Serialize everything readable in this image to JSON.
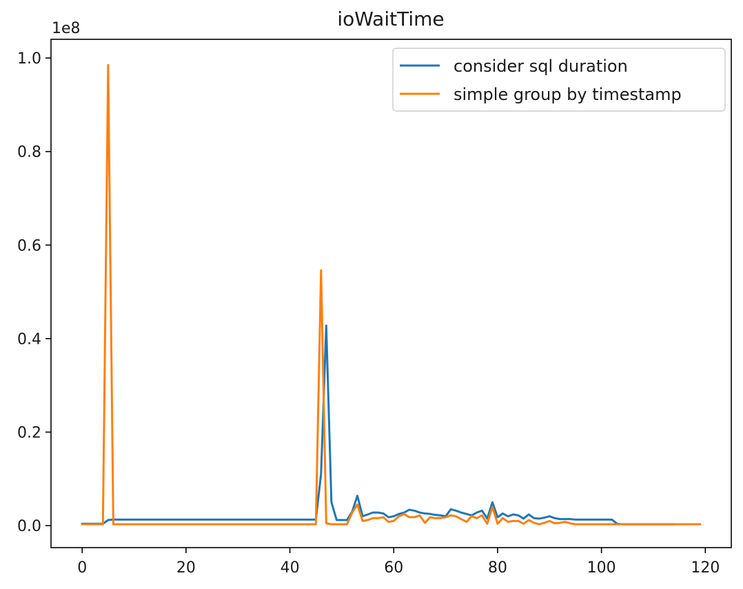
{
  "chart_data": {
    "type": "line",
    "title": "ioWaitTime",
    "y_offset_label": "1e8",
    "xlim": [
      -6,
      125
    ],
    "ylim": [
      -0.047,
      1.04
    ],
    "x_ticks": [
      0,
      20,
      40,
      60,
      80,
      100,
      120
    ],
    "y_ticks": [
      0.0,
      0.2,
      0.4,
      0.6,
      0.8,
      1.0
    ],
    "y_tick_labels": [
      "0.0",
      "0.2",
      "0.4",
      "0.6",
      "0.8",
      "1.0"
    ],
    "grid": false,
    "legend_placement": "top-right",
    "series": [
      {
        "name": "consider sql duration",
        "color": "#1f77b4",
        "x": [
          0,
          1,
          2,
          3,
          4,
          5,
          6,
          7,
          8,
          9,
          10,
          11,
          12,
          13,
          14,
          15,
          16,
          17,
          18,
          19,
          20,
          21,
          22,
          23,
          24,
          25,
          26,
          27,
          28,
          29,
          30,
          31,
          32,
          33,
          34,
          35,
          36,
          37,
          38,
          39,
          40,
          41,
          42,
          43,
          44,
          45,
          46,
          47,
          48,
          49,
          50,
          51,
          52,
          53,
          54,
          55,
          56,
          57,
          58,
          59,
          60,
          61,
          62,
          63,
          64,
          65,
          66,
          67,
          68,
          69,
          70,
          71,
          72,
          73,
          74,
          75,
          76,
          77,
          78,
          79,
          80,
          81,
          82,
          83,
          84,
          85,
          86,
          87,
          88,
          89,
          90,
          91,
          92,
          93,
          94,
          95,
          96,
          97,
          98,
          99,
          100,
          101,
          102,
          103,
          104,
          105,
          106,
          107,
          108,
          109,
          110,
          111,
          112,
          113,
          114
        ],
        "y": [
          0.004,
          0.004,
          0.004,
          0.004,
          0.004,
          0.012,
          0.013,
          0.013,
          0.013,
          0.013,
          0.013,
          0.013,
          0.013,
          0.013,
          0.013,
          0.013,
          0.013,
          0.013,
          0.013,
          0.013,
          0.013,
          0.013,
          0.013,
          0.013,
          0.013,
          0.013,
          0.013,
          0.013,
          0.013,
          0.013,
          0.013,
          0.013,
          0.013,
          0.013,
          0.013,
          0.013,
          0.013,
          0.013,
          0.013,
          0.013,
          0.013,
          0.013,
          0.013,
          0.013,
          0.013,
          0.013,
          0.11,
          0.428,
          0.05,
          0.012,
          0.012,
          0.012,
          0.03,
          0.064,
          0.02,
          0.024,
          0.028,
          0.028,
          0.026,
          0.018,
          0.02,
          0.025,
          0.028,
          0.034,
          0.032,
          0.028,
          0.026,
          0.025,
          0.023,
          0.022,
          0.02,
          0.035,
          0.032,
          0.028,
          0.025,
          0.022,
          0.028,
          0.032,
          0.015,
          0.05,
          0.018,
          0.026,
          0.02,
          0.024,
          0.022,
          0.015,
          0.024,
          0.016,
          0.015,
          0.017,
          0.02,
          0.016,
          0.014,
          0.014,
          0.014,
          0.013,
          0.013,
          0.013,
          0.013,
          0.013,
          0.013,
          0.013,
          0.013,
          0.004,
          0.003,
          0.003,
          0.003,
          0.003,
          0.003,
          0.003,
          0.003,
          0.003,
          0.003,
          0.003,
          0.003
        ]
      },
      {
        "name": "simple group by timestamp",
        "color": "#ff7f0e",
        "x": [
          0,
          1,
          2,
          3,
          4,
          5,
          6,
          7,
          8,
          9,
          10,
          11,
          12,
          13,
          14,
          15,
          16,
          17,
          18,
          19,
          20,
          21,
          22,
          23,
          24,
          25,
          26,
          27,
          28,
          29,
          30,
          31,
          32,
          33,
          34,
          35,
          36,
          37,
          38,
          39,
          40,
          41,
          42,
          43,
          44,
          45,
          46,
          47,
          48,
          49,
          50,
          51,
          52,
          53,
          54,
          55,
          56,
          57,
          58,
          59,
          60,
          61,
          62,
          63,
          64,
          65,
          66,
          67,
          68,
          69,
          70,
          71,
          72,
          73,
          74,
          75,
          76,
          77,
          78,
          79,
          80,
          81,
          82,
          83,
          84,
          85,
          86,
          87,
          88,
          89,
          90,
          91,
          92,
          93,
          94,
          95,
          96,
          97,
          98,
          99,
          100,
          101,
          102,
          103,
          104,
          105,
          106,
          107,
          108,
          109,
          110,
          111,
          112,
          113,
          114,
          115,
          116,
          117,
          118,
          119
        ],
        "y": [
          0.003,
          0.003,
          0.003,
          0.003,
          0.003,
          0.985,
          0.003,
          0.003,
          0.003,
          0.003,
          0.003,
          0.003,
          0.003,
          0.003,
          0.003,
          0.003,
          0.003,
          0.003,
          0.003,
          0.003,
          0.003,
          0.003,
          0.003,
          0.003,
          0.003,
          0.003,
          0.003,
          0.003,
          0.003,
          0.003,
          0.003,
          0.003,
          0.003,
          0.003,
          0.003,
          0.003,
          0.003,
          0.003,
          0.003,
          0.003,
          0.003,
          0.003,
          0.003,
          0.003,
          0.003,
          0.003,
          0.546,
          0.005,
          0.003,
          0.003,
          0.003,
          0.003,
          0.028,
          0.045,
          0.01,
          0.012,
          0.016,
          0.016,
          0.018,
          0.008,
          0.01,
          0.02,
          0.025,
          0.018,
          0.018,
          0.022,
          0.006,
          0.018,
          0.016,
          0.016,
          0.018,
          0.022,
          0.02,
          0.014,
          0.008,
          0.02,
          0.016,
          0.022,
          0.004,
          0.04,
          0.004,
          0.016,
          0.008,
          0.01,
          0.01,
          0.004,
          0.012,
          0.006,
          0.003,
          0.006,
          0.01,
          0.005,
          0.006,
          0.008,
          0.005,
          0.003,
          0.003,
          0.003,
          0.003,
          0.003,
          0.003,
          0.003,
          0.003,
          0.003,
          0.003,
          0.003,
          0.003,
          0.003,
          0.003,
          0.003,
          0.003,
          0.003,
          0.003,
          0.003,
          0.003,
          0.003,
          0.003,
          0.003,
          0.003,
          0.003
        ]
      }
    ]
  }
}
